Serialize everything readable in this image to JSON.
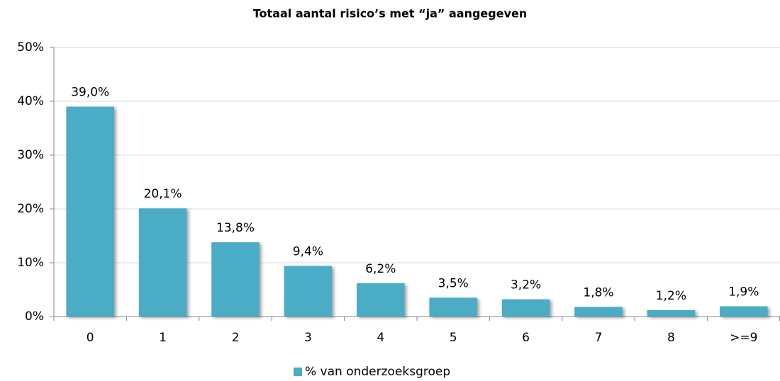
{
  "chart_data": {
    "type": "bar",
    "title": "Totaal aantal risico’s met “ja” aangegeven",
    "categories": [
      "0",
      "1",
      "2",
      "3",
      "4",
      "5",
      "6",
      "7",
      "8",
      ">=9"
    ],
    "series": [
      {
        "name": "% van onderzoeksgroep",
        "color": "#4bacc6",
        "values": [
          39.0,
          20.1,
          13.8,
          9.4,
          6.2,
          3.5,
          3.2,
          1.8,
          1.2,
          1.9
        ],
        "value_labels": [
          "39,0%",
          "20,1%",
          "13,8%",
          "9,4%",
          "6,2%",
          "3,5%",
          "3,2%",
          "1,8%",
          "1,2%",
          "1,9%"
        ]
      }
    ],
    "ylim": [
      0,
      50
    ],
    "yticks": [
      {
        "value": 0,
        "label": "0%"
      },
      {
        "value": 10,
        "label": "10%"
      },
      {
        "value": 20,
        "label": "20%"
      },
      {
        "value": 30,
        "label": "30%"
      },
      {
        "value": 40,
        "label": "40%"
      },
      {
        "value": 50,
        "label": "50%"
      }
    ],
    "grid": true,
    "legend": "bottom"
  }
}
